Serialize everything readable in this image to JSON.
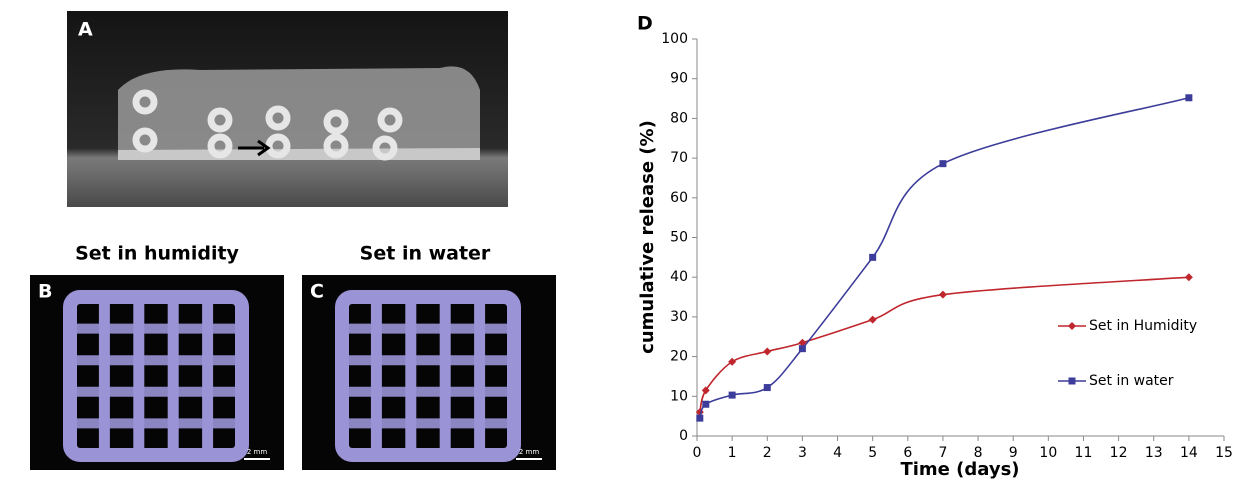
{
  "panels": [
    {
      "label": "A"
    },
    {
      "label": "B",
      "title": "Set in humidity",
      "scale_bar": "2 mm"
    },
    {
      "label": "C",
      "title": "Set in water",
      "scale_bar": "2 mm"
    }
  ],
  "chart_data": {
    "type": "line",
    "panel_label": "D",
    "x_label": "Time (days)",
    "y_label": "cumulative release (%)",
    "x": [
      0.08,
      0.25,
      1,
      2,
      3,
      5,
      7,
      14
    ],
    "series": [
      {
        "name": "Set in Humidity",
        "color": "#c0262d",
        "marker": "diamond",
        "values": [
          6,
          11.5,
          18.7,
          21.3,
          23.5,
          29.3,
          35.6,
          40
        ]
      },
      {
        "name": "Set in water",
        "color": "#3c3c9a",
        "marker": "square",
        "values": [
          4.5,
          8,
          10.3,
          12.2,
          22,
          45,
          68.6,
          85.2
        ]
      }
    ],
    "xlim": [
      0,
      15
    ],
    "xticks": [
      0,
      1,
      2,
      3,
      4,
      5,
      6,
      7,
      8,
      9,
      10,
      11,
      12,
      13,
      14,
      15
    ],
    "ylim": [
      0,
      100
    ],
    "yticks": [
      0,
      10,
      20,
      30,
      40,
      50,
      60,
      70,
      80,
      90,
      100
    ]
  }
}
